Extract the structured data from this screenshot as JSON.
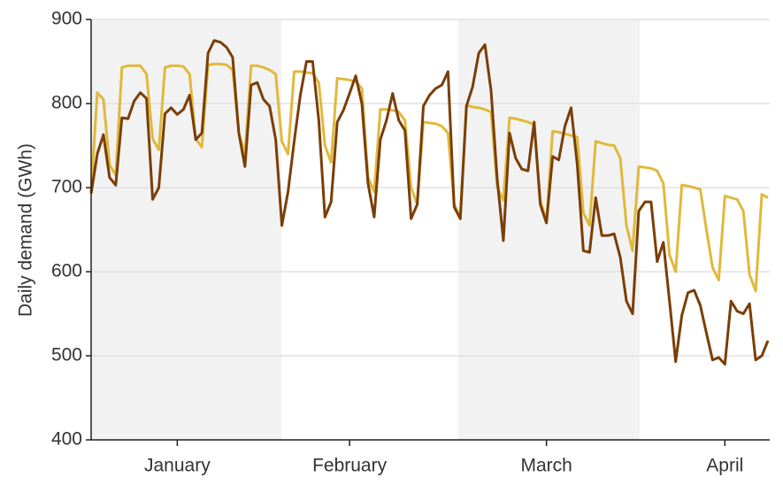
{
  "chart_data": {
    "type": "line",
    "ylabel": "Daily demand (GWh)",
    "ylim": [
      400,
      900
    ],
    "yticks": [
      400,
      500,
      600,
      700,
      800,
      900
    ],
    "grid": true,
    "categories": [
      null,
      null,
      null,
      null,
      null,
      null,
      null,
      null,
      null,
      null,
      null,
      null,
      null,
      null,
      "January",
      null,
      null,
      null,
      null,
      null,
      null,
      null,
      null,
      null,
      null,
      null,
      null,
      null,
      null,
      null,
      null,
      null,
      null,
      null,
      null,
      null,
      null,
      null,
      null,
      null,
      null,
      null,
      "February",
      null,
      null,
      null,
      null,
      null,
      null,
      null,
      null,
      null,
      null,
      null,
      null,
      null,
      null,
      null,
      null,
      null,
      null,
      null,
      null,
      null,
      null,
      null,
      null,
      null,
      null,
      null,
      null,
      null,
      null,
      null,
      "March",
      null,
      null,
      null,
      null,
      null,
      null,
      null,
      null,
      null,
      null,
      null,
      null,
      null,
      null,
      null,
      null,
      null,
      null,
      null,
      null,
      null,
      null,
      null,
      null,
      null,
      null,
      null,
      null,
      "April",
      null,
      null,
      null,
      null,
      null,
      null,
      null
    ],
    "series": [
      {
        "color": "#e0b93c",
        "values": [
          695,
          813,
          805,
          727,
          715,
          843,
          845,
          845,
          845,
          835,
          758,
          745,
          843,
          845,
          845,
          844,
          835,
          758,
          748,
          846,
          847,
          847,
          846,
          840,
          765,
          740,
          845,
          845,
          843,
          840,
          835,
          755,
          740,
          838,
          838,
          837,
          836,
          825,
          750,
          730,
          830,
          829,
          828,
          826,
          818,
          712,
          695,
          793,
          793,
          792,
          790,
          780,
          700,
          680,
          778,
          777,
          776,
          773,
          765,
          680,
          665,
          798,
          796,
          795,
          793,
          790,
          700,
          685,
          783,
          782,
          780,
          778,
          775,
          685,
          660,
          767,
          766,
          764,
          762,
          760,
          670,
          655,
          755,
          753,
          751,
          750,
          735,
          655,
          625,
          725,
          724,
          723,
          720,
          705,
          620,
          600,
          703,
          702,
          700,
          698,
          650,
          605,
          590,
          690,
          688,
          686,
          672,
          597,
          577,
          692,
          688
        ]
      },
      {
        "color": "#7a3e06",
        "values": [
          693,
          740,
          763,
          712,
          703,
          783,
          782,
          803,
          813,
          806,
          686,
          700,
          788,
          795,
          787,
          793,
          810,
          757,
          765,
          860,
          875,
          873,
          867,
          855,
          765,
          725,
          822,
          825,
          805,
          797,
          757,
          655,
          695,
          755,
          810,
          850,
          850,
          780,
          665,
          683,
          778,
          792,
          812,
          833,
          800,
          705,
          665,
          757,
          780,
          812,
          780,
          768,
          663,
          680,
          797,
          810,
          818,
          822,
          838,
          677,
          663,
          797,
          820,
          860,
          870,
          815,
          710,
          637,
          765,
          735,
          722,
          720,
          778,
          680,
          658,
          737,
          733,
          773,
          795,
          728,
          625,
          623,
          688,
          643,
          643,
          645,
          617,
          565,
          550,
          672,
          683,
          683,
          612,
          635,
          565,
          493,
          548,
          575,
          578,
          560,
          527,
          495,
          498,
          490,
          565,
          553,
          550,
          562,
          495,
          500,
          518
        ]
      }
    ]
  }
}
